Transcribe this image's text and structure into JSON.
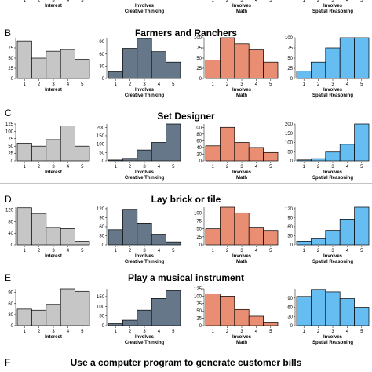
{
  "colors": {
    "interest": "#c6c6c6",
    "creative": "#66778a",
    "math": "#e98e72",
    "spatial": "#66bdf2",
    "stroke": "#000000"
  },
  "top_fragment": {
    "xlabels": [
      "Interest",
      "Involves\nCreative Thinking",
      "Involves\nMath",
      "Involves\nSpatial Reasoning"
    ]
  },
  "panels": [
    {
      "letter": "B",
      "title": "Farmers and Ranchers",
      "chart_data": [
        {
          "type": "bar",
          "categories": [
            "1",
            "2",
            "3",
            "4",
            "5"
          ],
          "values": [
            92,
            50,
            67,
            71,
            47
          ],
          "yticks": [
            0,
            25,
            50,
            75
          ],
          "ylim": [
            0,
            100
          ],
          "xlabel": "Interest",
          "color_key": "interest"
        },
        {
          "type": "bar",
          "categories": [
            "1",
            "2",
            "3",
            "4",
            "5"
          ],
          "values": [
            17,
            74,
            98,
            66,
            40
          ],
          "yticks": [
            0,
            30,
            60,
            90
          ],
          "ylim": [
            0,
            100
          ],
          "xlabel": "Involves\nCreative Thinking",
          "color_key": "creative"
        },
        {
          "type": "bar",
          "categories": [
            "1",
            "2",
            "3",
            "4",
            "5"
          ],
          "values": [
            45,
            100,
            85,
            70,
            40
          ],
          "yticks": [
            0,
            25,
            50,
            75,
            100
          ],
          "ylim": [
            0,
            100
          ],
          "xlabel": "Involves\nMath",
          "color_key": "math"
        },
        {
          "type": "bar",
          "categories": [
            "1",
            "2",
            "3",
            "4",
            "5"
          ],
          "values": [
            18,
            40,
            75,
            100,
            100
          ],
          "yticks": [
            0,
            25,
            50,
            75,
            100
          ],
          "ylim": [
            0,
            100
          ],
          "xlabel": "Involves\nSpatial Reasoning",
          "color_key": "spatial"
        }
      ]
    },
    {
      "letter": "C",
      "title": "Set Designer",
      "chart_data": [
        {
          "type": "bar",
          "categories": [
            "1",
            "2",
            "3",
            "4",
            "5"
          ],
          "values": [
            60,
            50,
            72,
            118,
            50
          ],
          "yticks": [
            0,
            25,
            50,
            75,
            100,
            125
          ],
          "ylim": [
            0,
            125
          ],
          "xlabel": "Interest",
          "color_key": "interest"
        },
        {
          "type": "bar",
          "categories": [
            "1",
            "2",
            "3",
            "4",
            "5"
          ],
          "values": [
            5,
            15,
            65,
            110,
            220
          ],
          "yticks": [
            0,
            50,
            100,
            150,
            200
          ],
          "ylim": [
            0,
            220
          ],
          "xlabel": "Involves\nCreative Thinking",
          "color_key": "creative"
        },
        {
          "type": "bar",
          "categories": [
            "1",
            "2",
            "3",
            "4",
            "5"
          ],
          "values": [
            45,
            100,
            55,
            40,
            25
          ],
          "yticks": [
            0,
            20,
            40,
            60,
            80,
            100
          ],
          "ylim": [
            0,
            110
          ],
          "xlabel": "Involves\nMath",
          "color_key": "math"
        },
        {
          "type": "bar",
          "categories": [
            "1",
            "2",
            "3",
            "4",
            "5"
          ],
          "values": [
            5,
            12,
            48,
            90,
            200
          ],
          "yticks": [
            0,
            50,
            100,
            150,
            200
          ],
          "ylim": [
            0,
            200
          ],
          "xlabel": "Involves\nSpatial Reasoning",
          "color_key": "spatial"
        }
      ]
    },
    {
      "letter": "D",
      "title": "Lay brick or tile",
      "chart_data": [
        {
          "type": "bar",
          "categories": [
            "1",
            "2",
            "3",
            "4",
            "5"
          ],
          "values": [
            128,
            108,
            60,
            56,
            12
          ],
          "yticks": [
            0,
            40,
            80,
            120
          ],
          "ylim": [
            0,
            130
          ],
          "xlabel": "Interest",
          "color_key": "interest"
        },
        {
          "type": "bar",
          "categories": [
            "1",
            "2",
            "3",
            "4",
            "5"
          ],
          "values": [
            50,
            118,
            72,
            35,
            10
          ],
          "yticks": [
            0,
            30,
            60,
            90,
            120
          ],
          "ylim": [
            0,
            125
          ],
          "xlabel": "Involves\nCreative Thinking",
          "color_key": "creative"
        },
        {
          "type": "bar",
          "categories": [
            "1",
            "2",
            "3",
            "4",
            "5"
          ],
          "values": [
            50,
            118,
            100,
            55,
            45
          ],
          "yticks": [
            0,
            25,
            50,
            75,
            100
          ],
          "ylim": [
            0,
            118
          ],
          "xlabel": "Involves\nMath",
          "color_key": "math"
        },
        {
          "type": "bar",
          "categories": [
            "1",
            "2",
            "3",
            "4",
            "5"
          ],
          "values": [
            12,
            22,
            48,
            85,
            125
          ],
          "yticks": [
            0,
            30,
            60,
            90,
            120
          ],
          "ylim": [
            0,
            125
          ],
          "xlabel": "Involves\nSpatial Reasoning",
          "color_key": "spatial"
        }
      ]
    },
    {
      "letter": "E",
      "title": "Play a musical instrument",
      "chart_data": [
        {
          "type": "bar",
          "categories": [
            "1",
            "2",
            "3",
            "4",
            "5"
          ],
          "values": [
            45,
            42,
            58,
            100,
            93
          ],
          "yticks": [
            0,
            30,
            60,
            90
          ],
          "ylim": [
            0,
            100
          ],
          "xlabel": "Interest",
          "color_key": "interest"
        },
        {
          "type": "bar",
          "categories": [
            "1",
            "2",
            "3",
            "4",
            "5"
          ],
          "values": [
            10,
            28,
            80,
            140,
            180
          ],
          "yticks": [
            0,
            50,
            100,
            150
          ],
          "ylim": [
            0,
            190
          ],
          "xlabel": "Involves\nCreative Thinking",
          "color_key": "creative"
        },
        {
          "type": "bar",
          "categories": [
            "1",
            "2",
            "3",
            "4",
            "5"
          ],
          "values": [
            108,
            100,
            55,
            32,
            12
          ],
          "yticks": [
            0,
            25,
            50,
            75,
            100,
            125
          ],
          "ylim": [
            0,
            125
          ],
          "xlabel": "Involves\nMath",
          "color_key": "math"
        },
        {
          "type": "bar",
          "categories": [
            "1",
            "2",
            "3",
            "4",
            "5"
          ],
          "values": [
            95,
            118,
            110,
            88,
            60
          ],
          "yticks": [
            0,
            30,
            60,
            90
          ],
          "ylim": [
            0,
            120
          ],
          "xlabel": "Involves\nSpatial Reasoning",
          "color_key": "spatial"
        }
      ]
    },
    {
      "letter": "F",
      "title": "Use a computer program to generate customer bills",
      "chart_data": []
    }
  ]
}
